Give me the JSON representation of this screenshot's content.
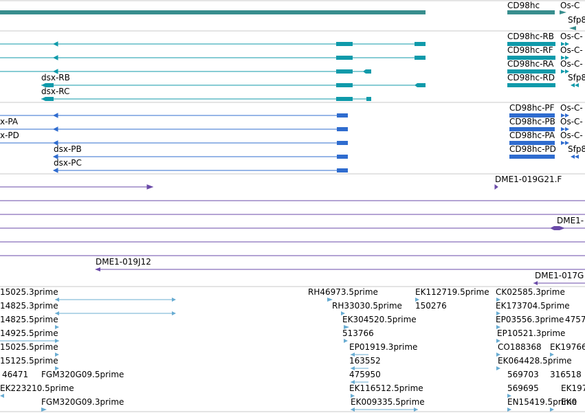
{
  "colors": {
    "gene": "#388e8e",
    "transcript_flybase": "#0f9aaa",
    "transcript_gene": "#2f6ccf",
    "clone": "#6a4aa8",
    "est": "#68acd2",
    "divider": "#c8c8c8"
  },
  "tracks": {
    "gene": {
      "labels": [
        "CD98hc",
        "Os-C",
        "Sfp8"
      ]
    },
    "transcripts_a": {
      "labels": [
        "CD98hc-RB",
        "Os-C-",
        "CD98hc-RF",
        "Os-C-",
        "CD98hc-RA",
        "Os-C-",
        "dsx-RB",
        "CD98hc-RD",
        "Sfp8",
        "dsx-RC"
      ]
    },
    "transcripts_b": {
      "labels": [
        "CD98hc-PF",
        "Os-C-",
        "x-PA",
        "CD98hc-PB",
        "Os-C-",
        "x-PD",
        "CD98hc-PA",
        "Os-C-",
        "dsx-PB",
        "CD98hc-PD",
        "Sfp8",
        "dsx-PC"
      ]
    },
    "clones": {
      "labels": [
        "DME1-019G21.F",
        "DME1-",
        "DME1-019J12",
        "DME1-017G"
      ]
    },
    "ests": {
      "labels": [
        "15025.3prime",
        "RH46973.5prime",
        "EK112719.5prime",
        "CK02585.3prime",
        "14825.3prime",
        "RH33030.5prime",
        "150276",
        "EK173704.5prime",
        "14825.5prime",
        "EK304520.5prime",
        "EP03556.3prime",
        "4757",
        "14925.5prime",
        "513766",
        "EP10521.3prime",
        "15025.5prime",
        "EP01919.3prime",
        "CO188368",
        "EK19766",
        "15125.5prime",
        "163552",
        "EK064428.5prime",
        "46471",
        "FGM320G09.5prime",
        "475950",
        "569703",
        "316518",
        "EK223210.5prime",
        "EK116512.5prime",
        "569695",
        "EK197",
        "FGM320G09.3prime",
        "EK009335.5prime",
        "EN15419.5prime",
        "EK0"
      ]
    }
  }
}
